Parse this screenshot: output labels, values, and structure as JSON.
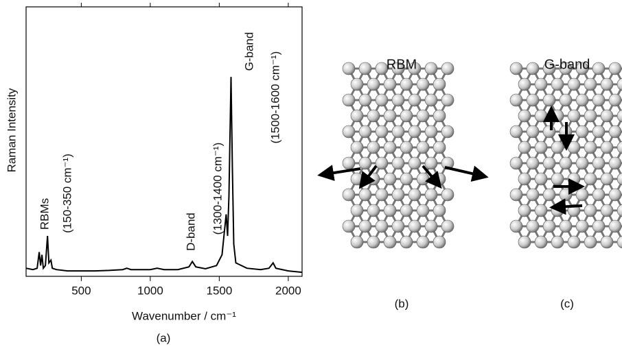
{
  "chart_data": {
    "type": "line",
    "y_label": "Raman Intensity",
    "x_label": "Wavenumber / cm⁻¹",
    "xlim": [
      100,
      2100
    ],
    "xticks": [
      500,
      1000,
      1500,
      2000
    ],
    "ylim": [
      0,
      100
    ],
    "series": [
      {
        "color": "#000000",
        "x": [
          100,
          150,
          180,
          195,
          205,
          215,
          225,
          240,
          255,
          265,
          280,
          290,
          320,
          400,
          500,
          600,
          700,
          800,
          830,
          860,
          1000,
          1050,
          1100,
          1200,
          1280,
          1305,
          1330,
          1400,
          1480,
          1520,
          1540,
          1550,
          1560,
          1570,
          1585,
          1595,
          1605,
          1620,
          1700,
          1800,
          1860,
          1890,
          1910,
          2000,
          2100
        ],
        "values": [
          3,
          2.5,
          3,
          9,
          4,
          8,
          3,
          4,
          15,
          5,
          6,
          3,
          2.5,
          2,
          2,
          2,
          2.2,
          2.5,
          3,
          2.5,
          2.5,
          3,
          2.5,
          2.5,
          3.5,
          5.5,
          3.5,
          2.8,
          4,
          8,
          18,
          23,
          15,
          30,
          74,
          40,
          12,
          5,
          3,
          2.5,
          3,
          5,
          3,
          2,
          1.5
        ]
      }
    ],
    "annotations": [
      "RBMs",
      "(150-350 cm⁻¹)",
      "D-band",
      "(1300-1400 cm⁻¹)",
      "G-band",
      "(1500-1600 cm⁻¹)"
    ]
  },
  "figure": {
    "panel_labels": [
      "(a)",
      "(b)",
      "(c)"
    ],
    "diagram_titles": [
      "RBM",
      "G-band"
    ]
  }
}
